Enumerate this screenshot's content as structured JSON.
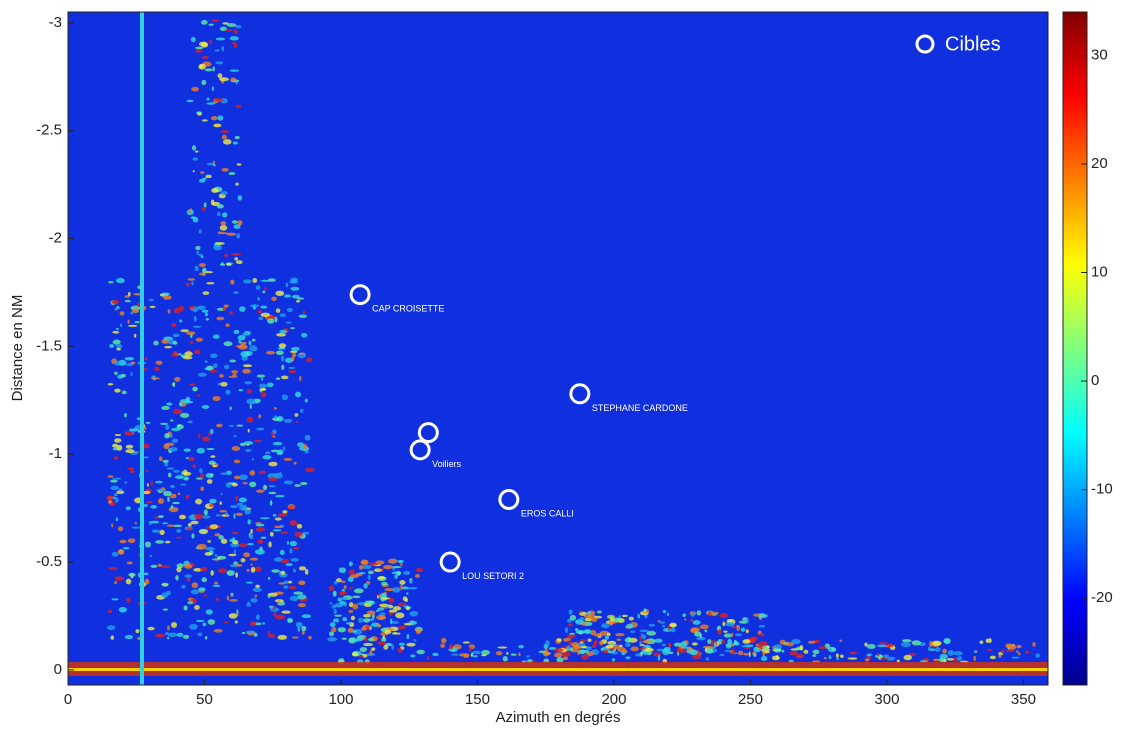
{
  "chart_data": {
    "type": "scatter",
    "xlabel": "Azimuth en degrés",
    "ylabel": "Distance en NM",
    "xlim": [
      0,
      359
    ],
    "ylim": [
      0.07,
      -3.05
    ],
    "xticks": [
      0,
      50,
      100,
      150,
      200,
      250,
      300,
      350
    ],
    "yticks": [
      0,
      -0.5,
      -1,
      -1.5,
      -2,
      -2.5,
      -3
    ],
    "colorbar": {
      "lim": [
        -28,
        34
      ],
      "ticks": [
        -20,
        -10,
        0,
        10,
        20,
        30
      ]
    },
    "legend": "upper right",
    "series": [
      {
        "name": "Cibles",
        "color": "#ffffff",
        "x": [
          107,
          187.5,
          132,
          129,
          161.5,
          140
        ],
        "y": [
          -1.74,
          -1.28,
          -1.1,
          -1.02,
          -0.79,
          -0.5
        ],
        "labels": [
          "CAP CROISETTE",
          "STEPHANE CARDONE",
          null,
          "Voiliers",
          "EROS CALLI",
          "LOU SETORI 2"
        ]
      }
    ]
  }
}
